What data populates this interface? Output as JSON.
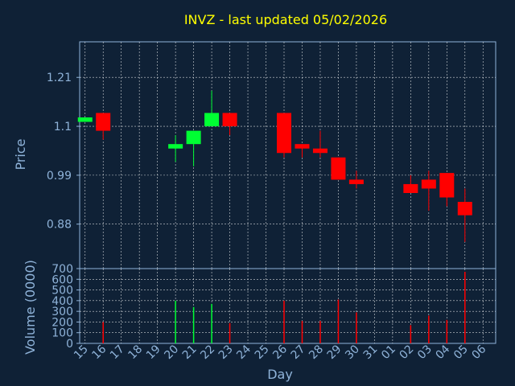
{
  "chart_data": [
    {
      "type": "candlestick",
      "title": "INVZ - last updated 05/02/2026",
      "xlabel": "",
      "ylabel": "Price",
      "ylim": [
        0.78,
        1.29
      ],
      "yticks": [
        "1.21",
        "1.1",
        "0.99",
        "0.88"
      ],
      "ytick_values": [
        1.21,
        1.1,
        0.99,
        0.88
      ],
      "grid": true,
      "up_color": "#00ff33",
      "down_color": "#ff0000",
      "categories": [
        "15",
        "16",
        "17",
        "18",
        "19",
        "20",
        "21",
        "22",
        "23",
        "24",
        "25",
        "26",
        "27",
        "28",
        "29",
        "30",
        "31",
        "01",
        "02",
        "03",
        "04",
        "05",
        "06"
      ],
      "candles": [
        {
          "x": "15",
          "open": 1.11,
          "high": 1.12,
          "low": 1.11,
          "close": 1.12
        },
        {
          "x": "16",
          "open": 1.13,
          "high": 1.13,
          "low": 1.07,
          "close": 1.09
        },
        {
          "x": "20",
          "open": 1.05,
          "high": 1.08,
          "low": 1.02,
          "close": 1.06
        },
        {
          "x": "21",
          "open": 1.06,
          "high": 1.09,
          "low": 1.01,
          "close": 1.09
        },
        {
          "x": "22",
          "open": 1.1,
          "high": 1.18,
          "low": 1.1,
          "close": 1.13
        },
        {
          "x": "23",
          "open": 1.13,
          "high": 1.13,
          "low": 1.08,
          "close": 1.1
        },
        {
          "x": "26",
          "open": 1.13,
          "high": 1.13,
          "low": 1.03,
          "close": 1.04
        },
        {
          "x": "27",
          "open": 1.06,
          "high": 1.06,
          "low": 1.03,
          "close": 1.05
        },
        {
          "x": "28",
          "open": 1.05,
          "high": 1.09,
          "low": 1.03,
          "close": 1.04
        },
        {
          "x": "29",
          "open": 1.03,
          "high": 1.03,
          "low": 0.98,
          "close": 0.98
        },
        {
          "x": "30",
          "open": 0.98,
          "high": 1.0,
          "low": 0.96,
          "close": 0.97
        },
        {
          "x": "02",
          "open": 0.97,
          "high": 0.99,
          "low": 0.95,
          "close": 0.95
        },
        {
          "x": "03",
          "open": 0.98,
          "high": 1.0,
          "low": 0.91,
          "close": 0.96
        },
        {
          "x": "04",
          "open": 0.995,
          "high": 0.995,
          "low": 0.92,
          "close": 0.94
        },
        {
          "x": "05",
          "open": 0.93,
          "high": 0.96,
          "low": 0.84,
          "close": 0.9
        }
      ]
    },
    {
      "type": "bar",
      "title": "",
      "xlabel": "Day",
      "ylabel": "Volume (0000)",
      "ylim": [
        0,
        700
      ],
      "yticks": [
        "700",
        "600",
        "500",
        "400",
        "300",
        "200",
        "100",
        "0"
      ],
      "ytick_values": [
        700,
        600,
        500,
        400,
        300,
        200,
        100,
        0
      ],
      "grid": true,
      "categories": [
        "15",
        "16",
        "17",
        "18",
        "19",
        "20",
        "21",
        "22",
        "23",
        "24",
        "25",
        "26",
        "27",
        "28",
        "29",
        "30",
        "31",
        "01",
        "02",
        "03",
        "04",
        "05",
        "06"
      ],
      "bars": [
        {
          "x": "16",
          "value": 200,
          "color": "#ff0000"
        },
        {
          "x": "20",
          "value": 400,
          "color": "#00ff33"
        },
        {
          "x": "21",
          "value": 340,
          "color": "#00ff33"
        },
        {
          "x": "22",
          "value": 370,
          "color": "#00ff33"
        },
        {
          "x": "23",
          "value": 190,
          "color": "#ff0000"
        },
        {
          "x": "26",
          "value": 400,
          "color": "#ff0000"
        },
        {
          "x": "27",
          "value": 210,
          "color": "#ff0000"
        },
        {
          "x": "28",
          "value": 210,
          "color": "#ff0000"
        },
        {
          "x": "29",
          "value": 410,
          "color": "#ff0000"
        },
        {
          "x": "30",
          "value": 290,
          "color": "#ff0000"
        },
        {
          "x": "02",
          "value": 170,
          "color": "#ff0000"
        },
        {
          "x": "03",
          "value": 260,
          "color": "#ff0000"
        },
        {
          "x": "04",
          "value": 220,
          "color": "#ff0000"
        },
        {
          "x": "05",
          "value": 670,
          "color": "#ff0000"
        }
      ]
    }
  ]
}
